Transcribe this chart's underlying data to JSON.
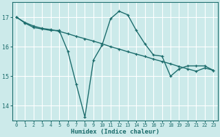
{
  "xlabel": "Humidex (Indice chaleur)",
  "ylabel": "",
  "background_color": "#cceaea",
  "grid_color": "#ffffff",
  "line_color": "#1a6b6b",
  "xlim": [
    -0.5,
    23.5
  ],
  "ylim": [
    13.5,
    17.5
  ],
  "yticks": [
    14,
    15,
    16,
    17
  ],
  "xticks": [
    0,
    1,
    2,
    3,
    4,
    5,
    6,
    7,
    8,
    9,
    10,
    11,
    12,
    13,
    14,
    15,
    16,
    17,
    18,
    19,
    20,
    21,
    22,
    23
  ],
  "curve1_x": [
    0,
    1,
    2,
    3,
    4,
    5,
    6,
    7,
    8,
    9,
    10,
    11,
    12,
    13,
    14,
    15,
    16,
    17,
    18,
    19,
    20,
    21,
    22,
    23
  ],
  "curve1_y": [
    17.0,
    16.8,
    16.65,
    16.6,
    16.55,
    16.55,
    15.85,
    14.72,
    13.62,
    15.55,
    16.05,
    16.95,
    17.2,
    17.08,
    16.55,
    16.1,
    15.72,
    15.68,
    15.0,
    15.25,
    15.35,
    15.35,
    15.35,
    15.2
  ],
  "curve2_x": [
    0,
    1,
    2,
    3,
    4,
    5,
    6,
    7,
    8,
    9,
    10,
    11,
    12,
    13,
    14,
    15,
    16,
    17,
    18,
    19,
    20,
    21,
    22,
    23
  ],
  "curve2_y": [
    17.0,
    16.82,
    16.7,
    16.62,
    16.58,
    16.52,
    16.44,
    16.35,
    16.27,
    16.19,
    16.1,
    16.0,
    15.92,
    15.83,
    15.75,
    15.67,
    15.58,
    15.5,
    15.42,
    15.33,
    15.25,
    15.17,
    15.28,
    15.2
  ]
}
